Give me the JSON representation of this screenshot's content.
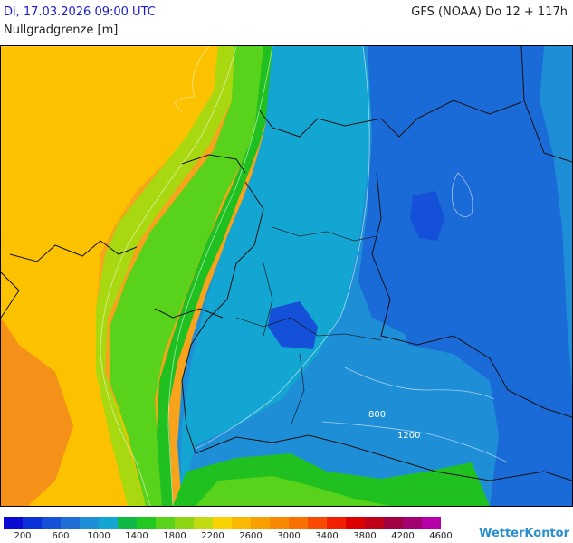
{
  "header": {
    "datetime": "Di, 17.03.2026 09:00 UTC",
    "variable": "Nullgradgrenze [m]",
    "model_run": "GFS (NOAA) Do 12 + 117h"
  },
  "map": {
    "contour_labels": [
      "800",
      "1200"
    ]
  },
  "legend": {
    "colors": [
      "#0a0ad2",
      "#0a32d8",
      "#1450d8",
      "#1e6ed6",
      "#1e8ed6",
      "#14a6d2",
      "#10b846",
      "#20c820",
      "#58d21a",
      "#8ed614",
      "#c0dc10",
      "#fad200",
      "#fab800",
      "#f8a000",
      "#f88800",
      "#f87000",
      "#f84a00",
      "#f02000",
      "#dc0000",
      "#c00018",
      "#a00040",
      "#a00070",
      "#b800a8"
    ],
    "labels": [
      "200",
      "600",
      "1000",
      "1400",
      "1800",
      "2200",
      "2600",
      "3000",
      "3400",
      "3800",
      "4200",
      "4600"
    ]
  },
  "brand": {
    "name": "WetterKontor"
  }
}
